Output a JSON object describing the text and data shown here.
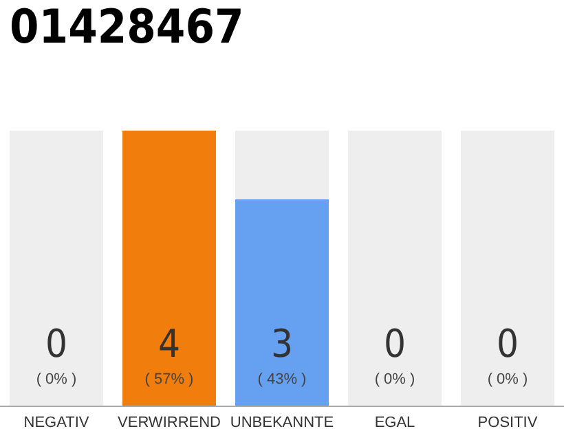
{
  "chart_data": {
    "type": "bar",
    "title": "01428467",
    "categories": [
      "NEGATIV",
      "VERWIRREND",
      "UNBEKANNTE",
      "EGAL",
      "POSITIV"
    ],
    "values": [
      0,
      4,
      3,
      0,
      0
    ],
    "colors": [
      null,
      "#f07d0c",
      "#66a0f0",
      null,
      null
    ],
    "ylim": [
      0,
      4
    ],
    "tick_labels": "x",
    "bands": [
      {
        "axis": "x",
        "from": "NEGATIV",
        "to": "NEGATIV",
        "color": "#eeeeee"
      },
      {
        "axis": "x",
        "from": "UNBEKANNTE",
        "to": "UNBEKANNTE",
        "color": "#eeeeee"
      },
      {
        "axis": "x",
        "from": "EGAL",
        "to": "EGAL",
        "color": "#eeeeee"
      },
      {
        "axis": "x",
        "from": "POSITIV",
        "to": "POSITIV",
        "color": "#eeeeee"
      }
    ],
    "value_labels": [
      "0\n( 0% )",
      "4\n( 57% )",
      "3\n( 43% )",
      "0\n( 0% )",
      "0\n( 0% )"
    ]
  }
}
